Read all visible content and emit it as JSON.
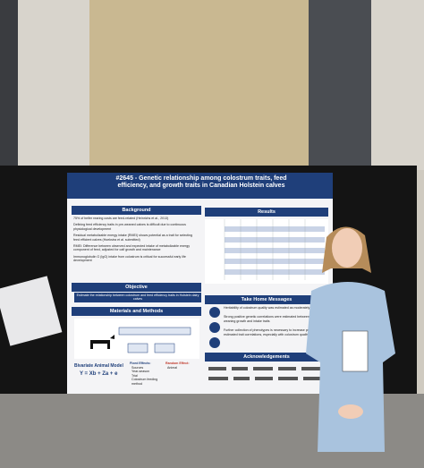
{
  "poster": {
    "title": "#2645 - Genetic relationship among colostrum traits, feed efficiency, and growth traits in Canadian Holstein calves",
    "background": {
      "heading": "Background",
      "bullets": [
        "75% of heifer rearing costs are feed-related (Heinrichs et al., 2013)",
        "Defining feed efficiency traits in pre-weaned calves is difficult due to continuous physiological development",
        "Residual metabolizable energy intake (RMEI) shows potential as a trait for selecting feed efficient calves (Hoekstra et al. submitted)",
        "RMEI: Difference between observed and expected intake of metabolizable energy component of feed, adjusted for calf growth and maintenance",
        "Immunoglobulin G (IgG) intake from colostrum is critical for successful early life development"
      ]
    },
    "objective": {
      "heading": "Objective",
      "text": "Estimate the relationship between colostrum and feed efficiency traits in Holstein dairy calves"
    },
    "methods": {
      "heading": "Materials and Methods",
      "model_name": "Bivariate Animal Model",
      "equation": "Y = Xb + Za + e",
      "fixed_heading": "Fixed Effects:",
      "fixed": [
        "Sources",
        "Year-season",
        "Trial",
        "Colostrum feeding method"
      ],
      "random_heading": "Random Effect:",
      "random": [
        "Animal"
      ]
    },
    "results": {
      "heading": "Results"
    },
    "take_home": {
      "heading": "Take Home Messages",
      "messages": [
        "Heritability of colostrum quality was estimated as moderately high",
        "Strong positive genetic correlations were estimated between pre-weaning growth and intake traits",
        "Further collection of phenotypes is necessary to increase precision of estimated trait correlations, especially with colostrum quality"
      ]
    },
    "acknowledgements": {
      "heading": "Acknowledgements"
    }
  }
}
